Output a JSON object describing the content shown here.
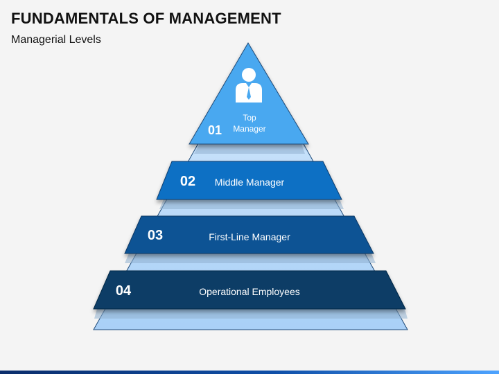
{
  "title": "FUNDAMENTALS OF MANAGEMENT",
  "subtitle": "Managerial Levels",
  "levels": [
    {
      "number": "01",
      "label_line1": "Top",
      "label_line2": "Manager",
      "color": "#4aa8f0"
    },
    {
      "number": "02",
      "label": "Middle Manager",
      "color": "#0e6fc4"
    },
    {
      "number": "03",
      "label": "First-Line Manager",
      "color": "#0b5294"
    },
    {
      "number": "04",
      "label": "Operational Employees",
      "color": "#083c66"
    }
  ],
  "icons": {
    "top": "manager-person-icon"
  },
  "colors": {
    "pyramid_light": "#bcdcfa",
    "pyramid_outline": "#1e4a78"
  }
}
